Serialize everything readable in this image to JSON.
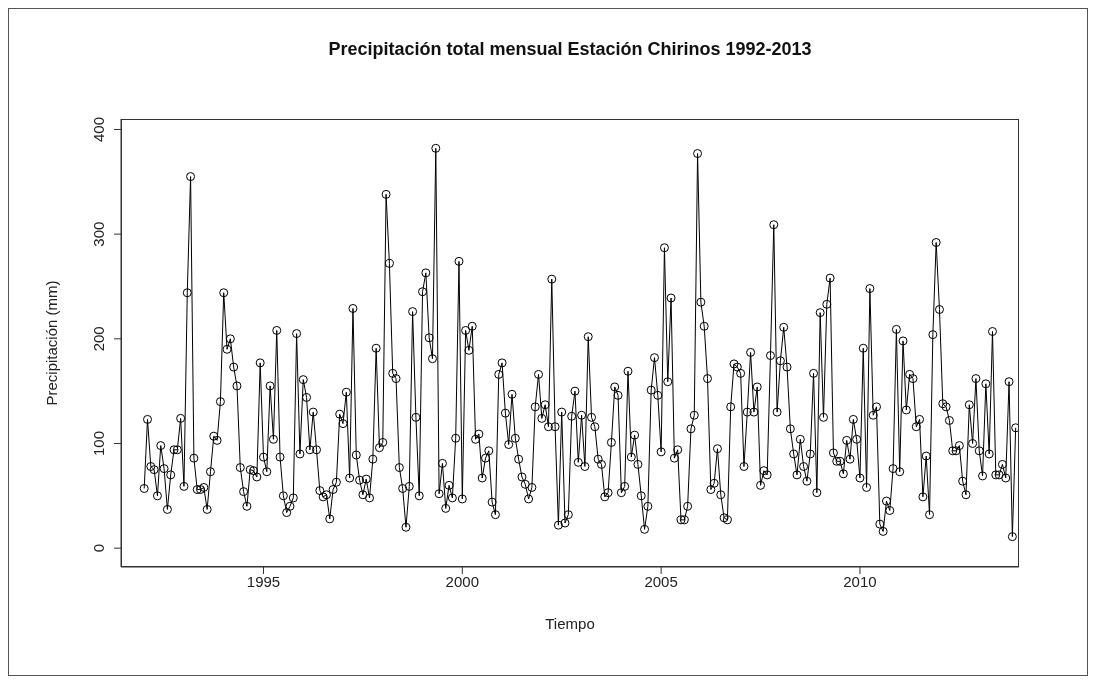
{
  "chart_data": {
    "type": "line",
    "title": "Precipitación total mensual Estación Chirinos 1992-2013",
    "xlabel": "Tiempo",
    "ylabel": "Precipitación (mm)",
    "x": [
      "1992-01",
      "1992-02",
      "1992-03",
      "1992-04",
      "1992-05",
      "1992-06",
      "1992-07",
      "1992-08",
      "1992-09",
      "1992-10",
      "1992-11",
      "1992-12",
      "1993-01",
      "1993-02",
      "1993-03",
      "1993-04",
      "1993-05",
      "1993-06",
      "1993-07",
      "1993-08",
      "1993-09",
      "1993-10",
      "1993-11",
      "1993-12",
      "1994-01",
      "1994-02",
      "1994-03",
      "1994-04",
      "1994-05",
      "1994-06",
      "1994-07",
      "1994-08",
      "1994-09",
      "1994-10",
      "1994-11",
      "1994-12",
      "1995-01",
      "1995-02",
      "1995-03",
      "1995-04",
      "1995-05",
      "1995-06",
      "1995-07",
      "1995-08",
      "1995-09",
      "1995-10",
      "1995-11",
      "1995-12",
      "1996-01",
      "1996-02",
      "1996-03",
      "1996-04",
      "1996-05",
      "1996-06",
      "1996-07",
      "1996-08",
      "1996-09",
      "1996-10",
      "1996-11",
      "1996-12",
      "1997-01",
      "1997-02",
      "1997-03",
      "1997-04",
      "1997-05",
      "1997-06",
      "1997-07",
      "1997-08",
      "1997-09",
      "1997-10",
      "1997-11",
      "1997-12",
      "1998-01",
      "1998-02",
      "1998-03",
      "1998-04",
      "1998-05",
      "1998-06",
      "1998-07",
      "1998-08",
      "1998-09",
      "1998-10",
      "1998-11",
      "1998-12",
      "1999-01",
      "1999-02",
      "1999-03",
      "1999-04",
      "1999-05",
      "1999-06",
      "1999-07",
      "1999-08",
      "1999-09",
      "1999-10",
      "1999-11",
      "1999-12",
      "2000-01",
      "2000-02",
      "2000-03",
      "2000-04",
      "2000-05",
      "2000-06",
      "2000-07",
      "2000-08",
      "2000-09",
      "2000-10",
      "2000-11",
      "2000-12",
      "2001-01",
      "2001-02",
      "2001-03",
      "2001-04",
      "2001-05",
      "2001-06",
      "2001-07",
      "2001-08",
      "2001-09",
      "2001-10",
      "2001-11",
      "2001-12",
      "2002-01",
      "2002-02",
      "2002-03",
      "2002-04",
      "2002-05",
      "2002-06",
      "2002-07",
      "2002-08",
      "2002-09",
      "2002-10",
      "2002-11",
      "2002-12",
      "2003-01",
      "2003-02",
      "2003-03",
      "2003-04",
      "2003-05",
      "2003-06",
      "2003-07",
      "2003-08",
      "2003-09",
      "2003-10",
      "2003-11",
      "2003-12",
      "2004-01",
      "2004-02",
      "2004-03",
      "2004-04",
      "2004-05",
      "2004-06",
      "2004-07",
      "2004-08",
      "2004-09",
      "2004-10",
      "2004-11",
      "2004-12",
      "2005-01",
      "2005-02",
      "2005-03",
      "2005-04",
      "2005-05",
      "2005-06",
      "2005-07",
      "2005-08",
      "2005-09",
      "2005-10",
      "2005-11",
      "2005-12",
      "2006-01",
      "2006-02",
      "2006-03",
      "2006-04",
      "2006-05",
      "2006-06",
      "2006-07",
      "2006-08",
      "2006-09",
      "2006-10",
      "2006-11",
      "2006-12",
      "2007-01",
      "2007-02",
      "2007-03",
      "2007-04",
      "2007-05",
      "2007-06",
      "2007-07",
      "2007-08",
      "2007-09",
      "2007-10",
      "2007-11",
      "2007-12",
      "2008-01",
      "2008-02",
      "2008-03",
      "2008-04",
      "2008-05",
      "2008-06",
      "2008-07",
      "2008-08",
      "2008-09",
      "2008-10",
      "2008-11",
      "2008-12",
      "2009-01",
      "2009-02",
      "2009-03",
      "2009-04",
      "2009-05",
      "2009-06",
      "2009-07",
      "2009-08",
      "2009-09",
      "2009-10",
      "2009-11",
      "2009-12",
      "2010-01",
      "2010-02",
      "2010-03",
      "2010-04",
      "2010-05",
      "2010-06",
      "2010-07",
      "2010-08",
      "2010-09",
      "2010-10",
      "2010-11",
      "2010-12",
      "2011-01",
      "2011-02",
      "2011-03",
      "2011-04",
      "2011-05",
      "2011-06",
      "2011-07",
      "2011-08",
      "2011-09",
      "2011-10",
      "2011-11",
      "2011-12",
      "2012-01",
      "2012-02",
      "2012-03",
      "2012-04",
      "2012-05",
      "2012-06",
      "2012-07",
      "2012-08",
      "2012-09",
      "2012-10",
      "2012-11",
      "2012-12",
      "2013-01",
      "2013-02",
      "2013-03",
      "2013-04",
      "2013-05",
      "2013-06",
      "2013-07",
      "2013-08",
      "2013-09",
      "2013-10",
      "2013-11",
      "2013-12"
    ],
    "values": [
      57,
      123,
      78,
      75,
      50,
      98,
      76,
      37,
      70,
      94,
      94,
      124,
      59,
      244,
      355,
      86,
      56,
      56,
      58,
      37,
      73,
      107,
      103,
      140,
      244,
      190,
      200,
      173,
      155,
      77,
      54,
      40,
      75,
      74,
      68,
      177,
      87,
      73,
      155,
      104,
      208,
      87,
      50,
      34,
      40,
      48,
      205,
      90,
      161,
      144,
      94,
      130,
      94,
      55,
      49,
      51,
      28,
      56,
      63,
      128,
      119,
      149,
      67,
      229,
      89,
      65,
      51,
      66,
      48,
      85,
      191,
      96,
      101,
      338,
      272,
      167,
      162,
      77,
      57,
      20,
      59,
      226,
      125,
      50,
      245,
      263,
      201,
      181,
      382,
      52,
      81,
      38,
      60,
      48,
      105,
      274,
      47,
      208,
      189,
      212,
      104,
      109,
      67,
      86,
      93,
      44,
      32,
      166,
      177,
      129,
      99,
      147,
      105,
      85,
      68,
      61,
      47,
      58,
      135,
      166,
      124,
      137,
      116,
      257,
      116,
      22,
      130,
      24,
      32,
      126,
      150,
      82,
      127,
      78,
      202,
      125,
      116,
      85,
      80,
      49,
      53,
      101,
      154,
      146,
      53,
      59,
      169,
      87,
      108,
      80,
      50,
      18,
      40,
      151,
      182,
      146,
      92,
      287,
      159,
      239,
      86,
      94,
      27,
      27,
      40,
      114,
      127,
      377,
      235,
      212,
      162,
      56,
      62,
      95,
      51,
      29,
      27,
      135,
      176,
      173,
      167,
      78,
      130,
      187,
      130,
      154,
      60,
      74,
      70,
      184,
      309,
      130,
      179,
      211,
      173,
      114,
      90,
      70,
      104,
      78,
      64,
      90,
      167,
      53,
      225,
      125,
      233,
      258,
      91,
      83,
      83,
      71,
      103,
      85,
      123,
      104,
      67,
      191,
      58,
      248,
      127,
      135,
      23,
      16,
      45,
      36,
      76,
      209,
      73,
      198,
      132,
      166,
      162,
      116,
      123,
      49,
      88,
      32,
      204,
      292,
      228,
      138,
      135,
      122,
      93,
      93,
      98,
      64,
      51,
      137,
      100,
      162,
      93,
      69,
      157,
      90,
      207,
      70,
      70,
      80,
      67,
      159,
      11,
      115
    ],
    "color": "#000000",
    "marker": "circle",
    "line_style": "solid",
    "grid": false,
    "xlim": [
      "1991-06",
      "2014-01"
    ],
    "xticks": [
      "1995",
      "2000",
      "2005",
      "2010"
    ],
    "ylim": [
      -18,
      410
    ],
    "yticks": [
      0,
      100,
      200,
      300,
      400
    ]
  }
}
